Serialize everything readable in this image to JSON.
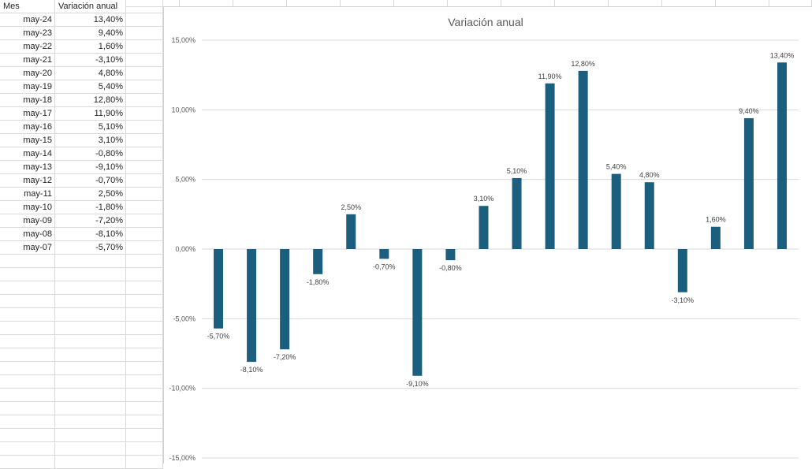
{
  "sheet": {
    "headers": [
      "Mes",
      "Variación anual"
    ],
    "rows": [
      [
        "may-24",
        "13,40%"
      ],
      [
        "may-23",
        "9,40%"
      ],
      [
        "may-22",
        "1,60%"
      ],
      [
        "may-21",
        "-3,10%"
      ],
      [
        "may-20",
        "4,80%"
      ],
      [
        "may-19",
        "5,40%"
      ],
      [
        "may-18",
        "12,80%"
      ],
      [
        "may-17",
        "11,90%"
      ],
      [
        "may-16",
        "5,10%"
      ],
      [
        "may-15",
        "3,10%"
      ],
      [
        "may-14",
        "-0,80%"
      ],
      [
        "may-13",
        "-9,10%"
      ],
      [
        "may-12",
        "-0,70%"
      ],
      [
        "may-11",
        "2,50%"
      ],
      [
        "may-10",
        "-1,80%"
      ],
      [
        "may-09",
        "-7,20%"
      ],
      [
        "may-08",
        "-8,10%"
      ],
      [
        "may-07",
        "-5,70%"
      ]
    ]
  },
  "colors": {
    "bar": "#1b5e7e",
    "gridline": "#d9d9d9",
    "axis_text": "#595959",
    "title_text": "#595959"
  },
  "chart_data": {
    "type": "bar",
    "title": "Variación anual",
    "categories": [
      "may-07",
      "may-08",
      "may-09",
      "may-10",
      "may-11",
      "may-12",
      "may-13",
      "may-14",
      "may-15",
      "may-16",
      "may-17",
      "may-18",
      "may-19",
      "may-20",
      "may-21",
      "may-22",
      "may-23",
      "may-24"
    ],
    "values": [
      -5.7,
      -8.1,
      -7.2,
      -1.8,
      2.5,
      -0.7,
      -9.1,
      -0.8,
      3.1,
      5.1,
      11.9,
      12.8,
      5.4,
      4.8,
      -3.1,
      1.6,
      9.4,
      13.4
    ],
    "data_labels": [
      "-5,70%",
      "-8,10%",
      "-7,20%",
      "-1,80%",
      "2,50%",
      "-0,70%",
      "-9,10%",
      "-0,80%",
      "3,10%",
      "5,10%",
      "11,90%",
      "12,80%",
      "5,40%",
      "4,80%",
      "-3,10%",
      "1,60%",
      "9,40%",
      "13,40%"
    ],
    "ylim": [
      -15,
      15
    ],
    "yticks": [
      15,
      10,
      5,
      0,
      -5,
      -10,
      -15
    ],
    "ytick_labels": [
      "15,00%",
      "10,00%",
      "5,00%",
      "0,00%",
      "-5,00%",
      "-10,00%",
      "-15,00%"
    ],
    "grid": true,
    "legend": "none",
    "xlabel": "",
    "ylabel": ""
  }
}
